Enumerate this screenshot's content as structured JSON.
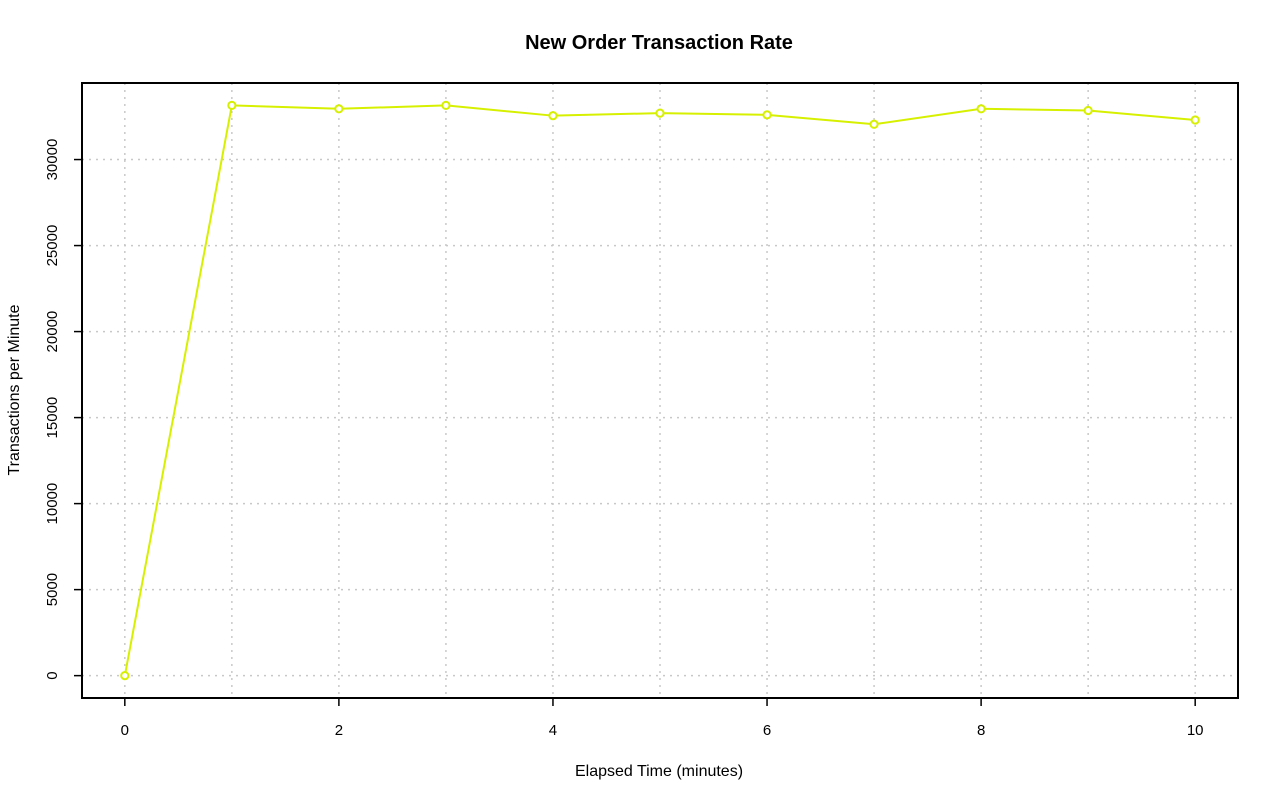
{
  "chart_data": {
    "type": "line",
    "title": "New Order Transaction Rate",
    "xlabel": "Elapsed Time (minutes)",
    "ylabel": "Transactions per Minute",
    "x": [
      0,
      1,
      2,
      3,
      4,
      5,
      6,
      7,
      8,
      9,
      10
    ],
    "series": [
      {
        "values": [
          0,
          33150,
          32950,
          33150,
          32550,
          32700,
          32600,
          32050,
          32950,
          32850,
          32300
        ],
        "color": "#d6f000"
      }
    ],
    "xlim": [
      -0.4,
      10.4
    ],
    "ylim": [
      -1300,
      34450
    ],
    "xticks": [
      0,
      2,
      4,
      6,
      8,
      10
    ],
    "yticks": [
      0,
      5000,
      10000,
      15000,
      20000,
      25000,
      30000
    ],
    "xgrid": [
      0,
      1,
      2,
      3,
      4,
      5,
      6,
      7,
      8,
      9,
      10
    ],
    "ygrid": [
      0,
      5000,
      10000,
      15000,
      20000,
      25000,
      30000
    ],
    "grid": true,
    "marker": "open-circle"
  }
}
